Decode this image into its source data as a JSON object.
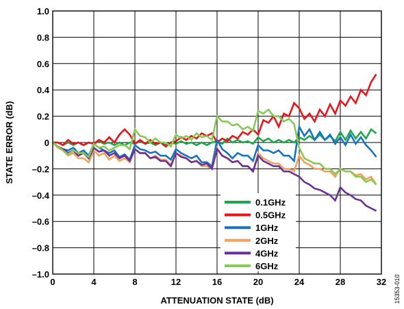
{
  "chart_data": {
    "type": "line",
    "xlabel": "ATTENUATION STATE (dB)",
    "ylabel": "STATE ERROR (dB)",
    "xlim": [
      0,
      32
    ],
    "ylim": [
      -1.0,
      1.0
    ],
    "x_ticks": [
      0,
      4,
      8,
      12,
      16,
      20,
      24,
      28,
      32
    ],
    "x_tick_labels": [
      "0",
      "4",
      "8",
      "12",
      "16",
      "20",
      "24",
      "28",
      "32"
    ],
    "y_ticks": [
      1.0,
      0.8,
      0.6,
      0.4,
      0.2,
      0,
      -0.2,
      -0.4,
      -0.6,
      -0.8,
      -1.0
    ],
    "y_tick_labels": [
      "1.0",
      "0.8",
      "0.6",
      "0.4",
      "0.2",
      "0",
      "–0.2",
      "–0.4",
      "–0.6",
      "–0.8",
      "–1.0"
    ],
    "grid": true,
    "legend_position": "lower-middle",
    "x": [
      0,
      0.5,
      1,
      1.5,
      2,
      2.5,
      3,
      3.5,
      4,
      4.5,
      5,
      5.5,
      6,
      6.5,
      7,
      7.5,
      8,
      8.5,
      9,
      9.5,
      10,
      10.5,
      11,
      11.5,
      12,
      12.5,
      13,
      13.5,
      14,
      14.5,
      15,
      15.5,
      16,
      16.5,
      17,
      17.5,
      18,
      18.5,
      19,
      19.5,
      20,
      20.5,
      21,
      21.5,
      22,
      22.5,
      23,
      23.5,
      24,
      24.5,
      25,
      25.5,
      26,
      26.5,
      27,
      27.5,
      28,
      28.5,
      29,
      29.5,
      30,
      30.5,
      31,
      31.5
    ],
    "series": [
      {
        "name": "0.1GHz",
        "color": "#1aa84a",
        "values": [
          0,
          0,
          -0.02,
          0,
          -0.02,
          0,
          -0.02,
          0,
          -0.01,
          0.01,
          -0.01,
          0,
          -0.02,
          0,
          -0.02,
          0,
          -0.01,
          0.01,
          -0.01,
          0,
          -0.02,
          0,
          -0.02,
          0,
          -0.01,
          0.01,
          -0.01,
          0,
          -0.02,
          0,
          -0.02,
          0,
          0.01,
          -0.01,
          0.03,
          0,
          0.02,
          0,
          0.01,
          -0.01,
          0.04,
          0.01,
          0.03,
          0,
          0.02,
          0,
          0.02,
          0,
          0.04,
          0.02,
          0.05,
          0.02,
          0.06,
          0.02,
          0.05,
          0.01,
          0.08,
          0.02,
          0.09,
          0.03,
          0.08,
          0.03,
          0.1,
          0.07
        ]
      },
      {
        "name": "0.5GHz",
        "color": "#e8141c",
        "values": [
          0,
          0,
          -0.02,
          0.02,
          -0.01,
          0,
          -0.02,
          0,
          -0.01,
          0.02,
          0,
          0.04,
          0,
          0.06,
          0.1,
          0.06,
          -0.01,
          0.02,
          -0.01,
          0.02,
          -0.01,
          0,
          -0.03,
          0,
          0.01,
          0.04,
          0.02,
          0.05,
          0.03,
          0.07,
          0.05,
          0.07,
          0,
          0.03,
          0.01,
          0.05,
          0.03,
          0.08,
          0.06,
          0.1,
          0.06,
          0.17,
          0.15,
          0.2,
          0.12,
          0.22,
          0.2,
          0.3,
          0.26,
          0.18,
          0.22,
          0.16,
          0.25,
          0.2,
          0.29,
          0.22,
          0.32,
          0.28,
          0.35,
          0.3,
          0.4,
          0.36,
          0.46,
          0.52
        ]
      },
      {
        "name": "1GHz",
        "color": "#1572c4",
        "values": [
          0,
          -0.03,
          -0.05,
          -0.06,
          -0.04,
          -0.08,
          -0.06,
          -0.1,
          -0.01,
          -0.04,
          -0.06,
          -0.08,
          -0.06,
          -0.11,
          -0.09,
          -0.13,
          -0.02,
          -0.05,
          -0.06,
          -0.08,
          -0.07,
          -0.1,
          -0.1,
          -0.13,
          -0.05,
          -0.08,
          -0.1,
          -0.12,
          -0.1,
          -0.15,
          -0.15,
          -0.18,
          0.02,
          -0.05,
          -0.08,
          -0.12,
          -0.08,
          -0.1,
          -0.1,
          -0.14,
          -0.02,
          -0.06,
          -0.06,
          -0.08,
          -0.06,
          -0.1,
          -0.1,
          -0.14,
          0.12,
          0.05,
          0.1,
          0.02,
          0.08,
          0.02,
          0.06,
          -0.01,
          0.04,
          -0.02,
          0.06,
          -0.01,
          0.04,
          -0.02,
          -0.06,
          -0.11
        ]
      },
      {
        "name": "2GHz",
        "color": "#f5a05a",
        "values": [
          0,
          -0.04,
          -0.06,
          -0.1,
          -0.08,
          -0.12,
          -0.12,
          -0.15,
          -0.06,
          -0.1,
          -0.08,
          -0.13,
          -0.1,
          -0.14,
          -0.12,
          -0.15,
          -0.05,
          -0.08,
          -0.08,
          -0.12,
          -0.1,
          -0.13,
          -0.13,
          -0.17,
          -0.08,
          -0.1,
          -0.12,
          -0.15,
          -0.14,
          -0.18,
          -0.18,
          -0.2,
          -0.04,
          -0.1,
          -0.12,
          -0.15,
          -0.14,
          -0.18,
          -0.18,
          -0.22,
          -0.08,
          -0.12,
          -0.14,
          -0.16,
          -0.16,
          -0.2,
          -0.2,
          -0.22,
          -0.1,
          -0.15,
          -0.17,
          -0.2,
          -0.2,
          -0.22,
          -0.22,
          -0.26,
          -0.2,
          -0.22,
          -0.22,
          -0.25,
          -0.24,
          -0.28,
          -0.26,
          -0.32
        ]
      },
      {
        "name": "4GHz",
        "color": "#6a3096",
        "values": [
          0,
          -0.03,
          -0.05,
          -0.08,
          -0.06,
          -0.1,
          -0.08,
          -0.12,
          -0.04,
          -0.07,
          -0.06,
          -0.1,
          -0.08,
          -0.12,
          -0.1,
          -0.14,
          -0.05,
          -0.08,
          -0.08,
          -0.12,
          -0.11,
          -0.14,
          -0.14,
          -0.18,
          -0.08,
          -0.11,
          -0.12,
          -0.15,
          -0.14,
          -0.17,
          -0.16,
          -0.2,
          -0.05,
          -0.1,
          -0.12,
          -0.15,
          -0.14,
          -0.18,
          -0.18,
          -0.22,
          -0.1,
          -0.14,
          -0.16,
          -0.18,
          -0.18,
          -0.22,
          -0.22,
          -0.24,
          -0.26,
          -0.3,
          -0.32,
          -0.35,
          -0.36,
          -0.38,
          -0.4,
          -0.44,
          -0.34,
          -0.38,
          -0.4,
          -0.43,
          -0.44,
          -0.48,
          -0.5,
          -0.52
        ]
      },
      {
        "name": "6GHz",
        "color": "#88c854",
        "values": [
          0,
          -0.03,
          -0.06,
          -0.09,
          -0.06,
          -0.08,
          -0.08,
          -0.11,
          -0.01,
          -0.04,
          -0.03,
          -0.06,
          -0.04,
          -0.02,
          -0.02,
          -0.05,
          0.1,
          0.05,
          0.04,
          0,
          0.03,
          0,
          0,
          -0.03,
          0.06,
          0.03,
          0.05,
          0.02,
          0.07,
          0.04,
          0.05,
          0.02,
          0.2,
          0.16,
          0.16,
          0.13,
          0.14,
          0.1,
          0.12,
          0.09,
          0.24,
          0.22,
          0.25,
          0.2,
          0.2,
          0.16,
          0.18,
          0.14,
          -0.04,
          -0.12,
          -0.14,
          -0.16,
          -0.16,
          -0.2,
          -0.2,
          -0.24,
          -0.2,
          -0.22,
          -0.22,
          -0.26,
          -0.26,
          -0.3,
          -0.28,
          -0.32
        ]
      }
    ]
  },
  "figure_code": "15353-010"
}
